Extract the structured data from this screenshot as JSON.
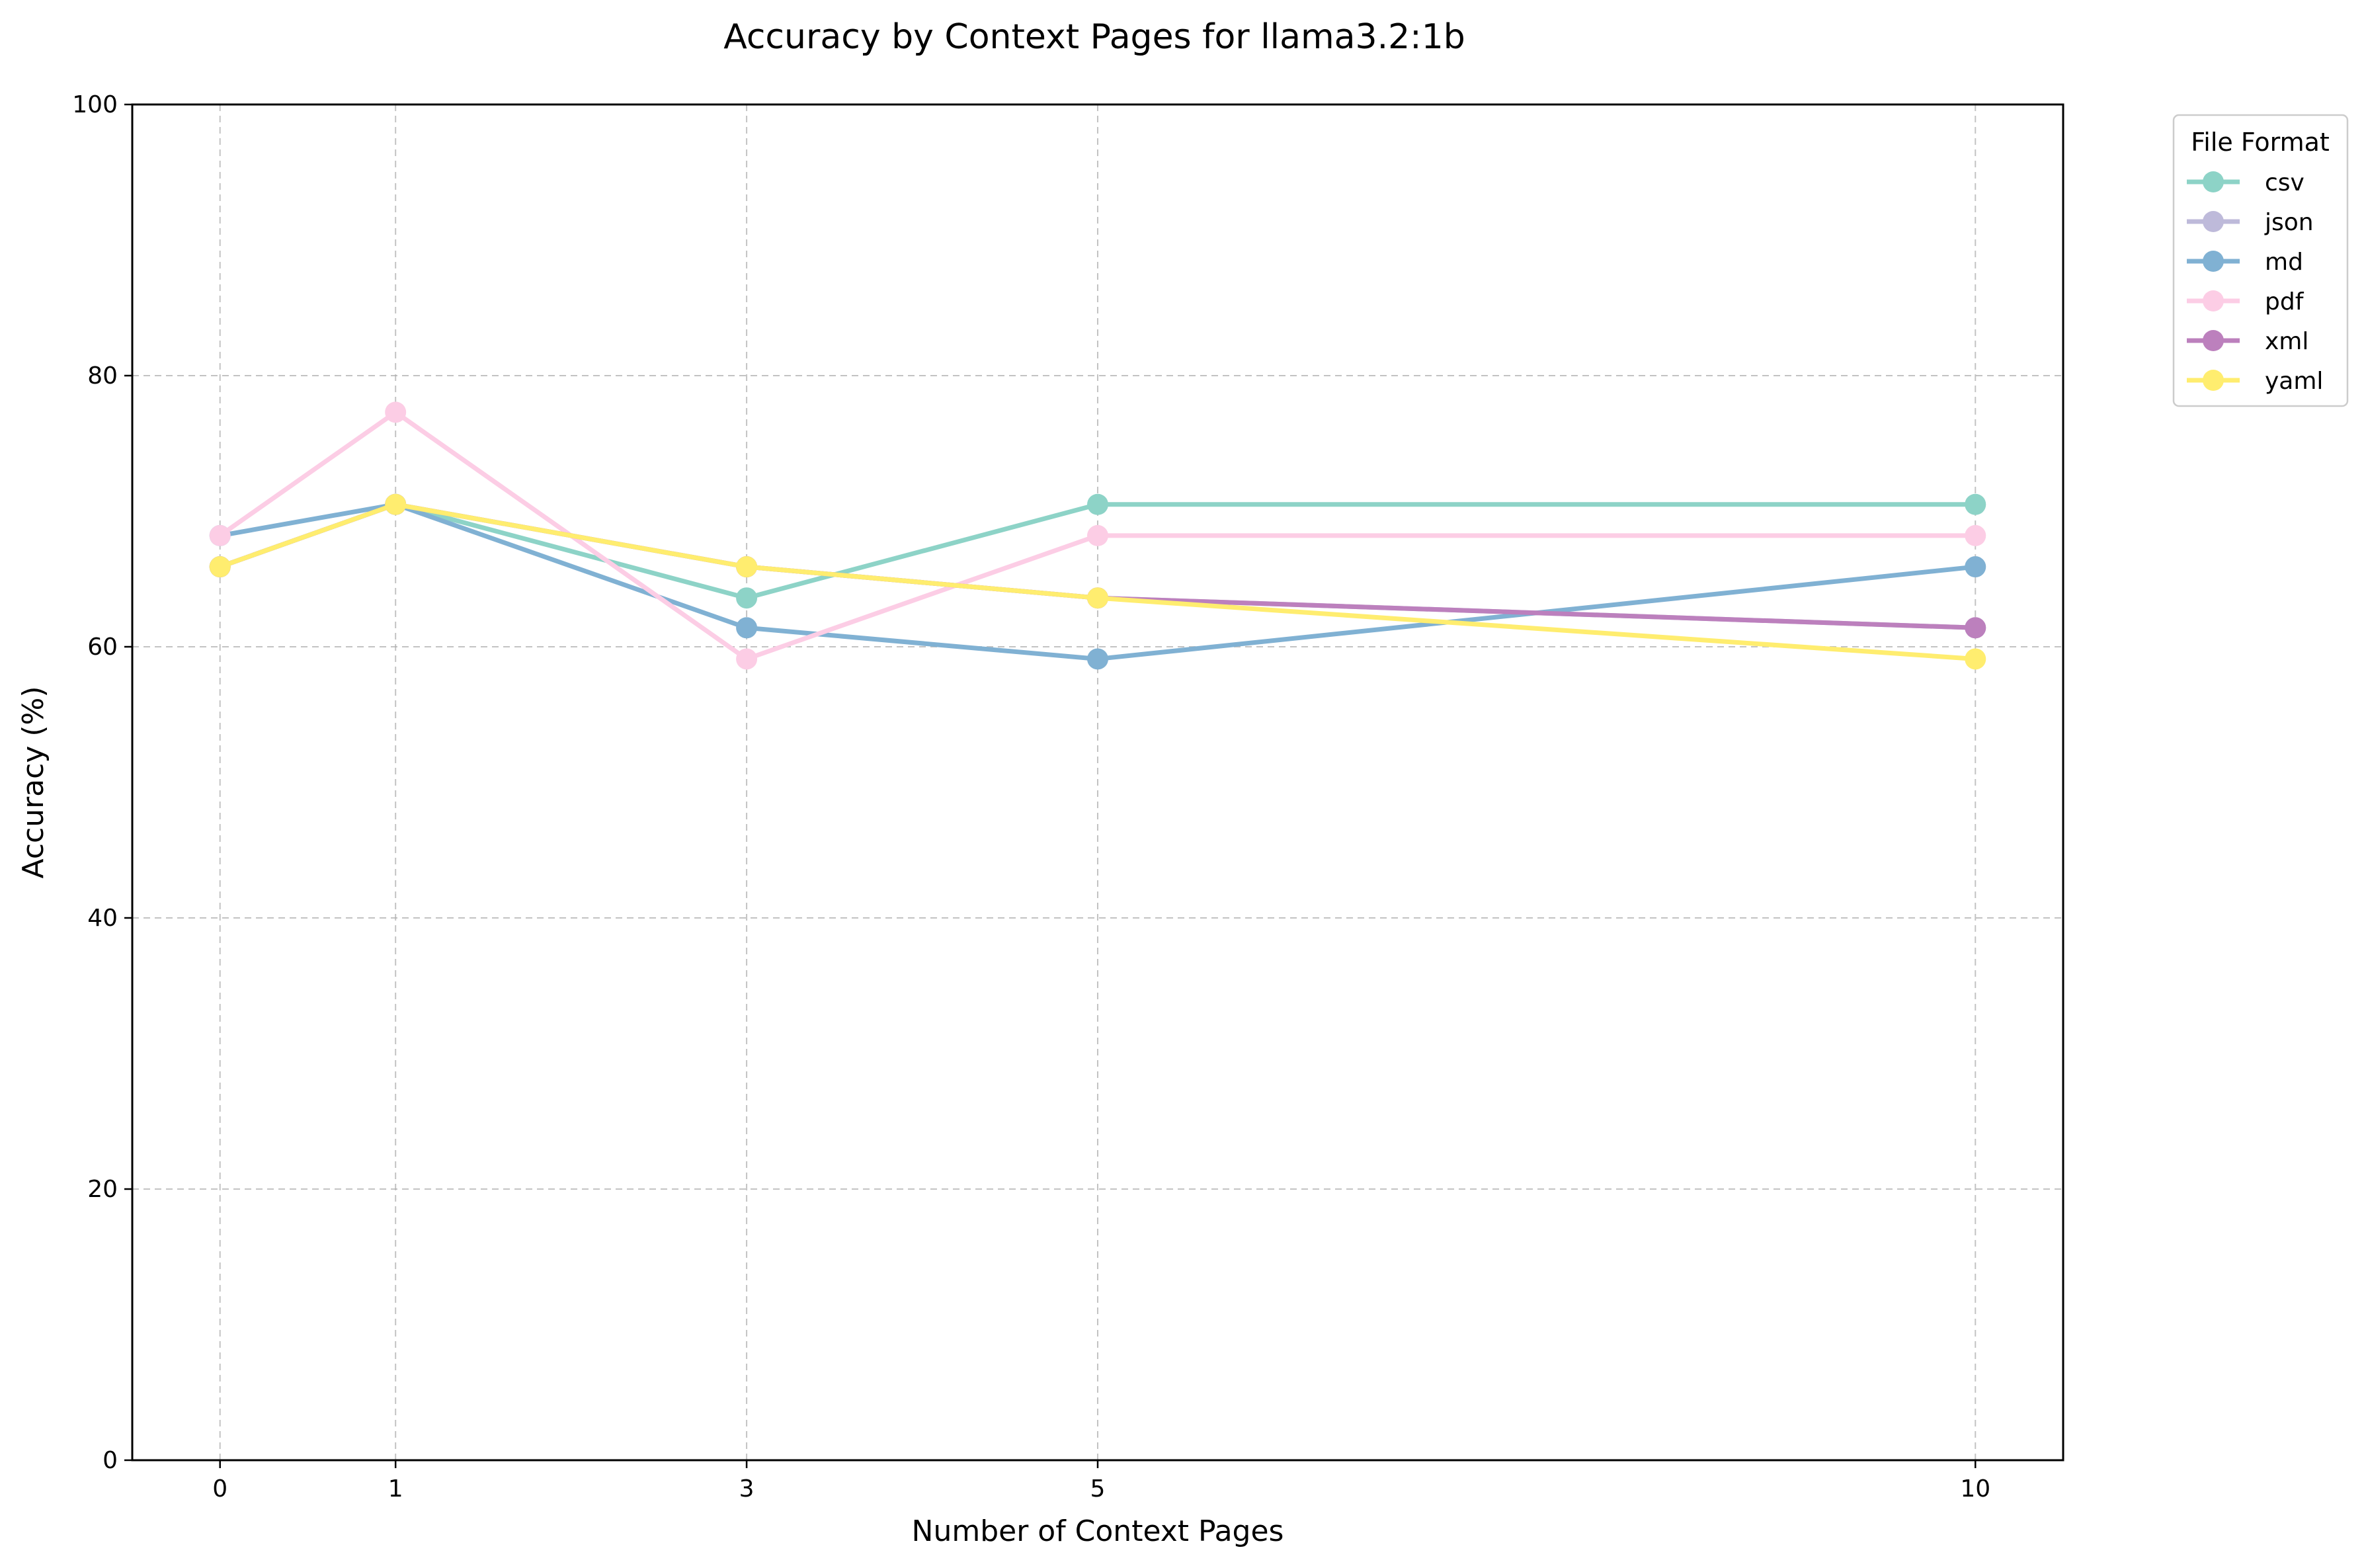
{
  "chart_data": {
    "type": "line",
    "title": "Accuracy by Context Pages for llama3.2:1b",
    "xlabel": "Number of Context Pages",
    "ylabel": "Accuracy (%)",
    "x": [
      0,
      1,
      3,
      5,
      10
    ],
    "x_ticks": [
      "0",
      "1",
      "3",
      "5",
      "10"
    ],
    "xlim": [
      -0.5,
      10.5
    ],
    "ylim": [
      0,
      100
    ],
    "y_ticks": [
      "0",
      "20",
      "40",
      "60",
      "80",
      "100"
    ],
    "grid": true,
    "legend": {
      "title": "File Format",
      "placement": "outside-top-right"
    },
    "series": [
      {
        "name": "csv",
        "color": "#8dd3c7",
        "values": [
          65.9,
          70.5,
          63.6,
          70.5,
          70.5
        ]
      },
      {
        "name": "json",
        "color": "#bebada",
        "values": [
          65.9,
          70.5,
          65.9,
          63.6,
          61.4
        ]
      },
      {
        "name": "md",
        "color": "#80b1d3",
        "values": [
          68.2,
          70.5,
          61.4,
          59.1,
          65.9
        ]
      },
      {
        "name": "pdf",
        "color": "#fccde5",
        "values": [
          68.2,
          77.3,
          59.1,
          68.2,
          68.2
        ]
      },
      {
        "name": "xml",
        "color": "#bc80bd",
        "values": [
          65.9,
          70.5,
          65.9,
          63.6,
          61.4
        ]
      },
      {
        "name": "yaml",
        "color": "#ffed6f",
        "values": [
          65.9,
          70.5,
          65.9,
          63.6,
          59.1
        ]
      }
    ]
  }
}
